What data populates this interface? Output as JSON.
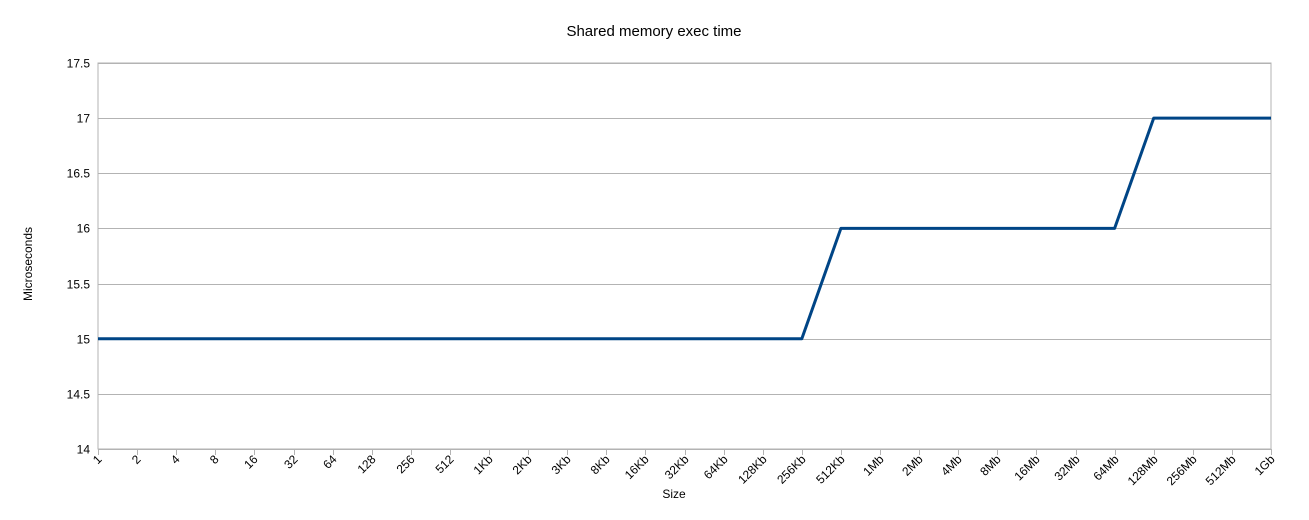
{
  "chart_data": {
    "type": "line",
    "title": "Shared memory exec time",
    "xlabel": "Size",
    "ylabel": "Microseconds",
    "ylim": [
      14,
      17.5
    ],
    "ytick_step": 0.5,
    "ytick_labels": [
      "14",
      "14.5",
      "15",
      "15.5",
      "16",
      "16.5",
      "17",
      "17.5"
    ],
    "grid": true,
    "legend": "none",
    "categories": [
      "1",
      "2",
      "4",
      "8",
      "16",
      "32",
      "64",
      "128",
      "256",
      "512",
      "1Kb",
      "2Kb",
      "3Kb",
      "8Kb",
      "16Kb",
      "32Kb",
      "64Kb",
      "128Kb",
      "256Kb",
      "512Kb",
      "1Mb",
      "2Mb",
      "4Mb",
      "8Mb",
      "16Mb",
      "32Mb",
      "64Mb",
      "128Mb",
      "256Mb",
      "512Mb",
      "1Gb"
    ],
    "series": [
      {
        "color": "#004586",
        "values": [
          15,
          15,
          15,
          15,
          15,
          15,
          15,
          15,
          15,
          15,
          15,
          15,
          15,
          15,
          15,
          15,
          15,
          15,
          15,
          16,
          16,
          16,
          16,
          16,
          16,
          16,
          16,
          17,
          17,
          17,
          17
        ]
      }
    ]
  }
}
